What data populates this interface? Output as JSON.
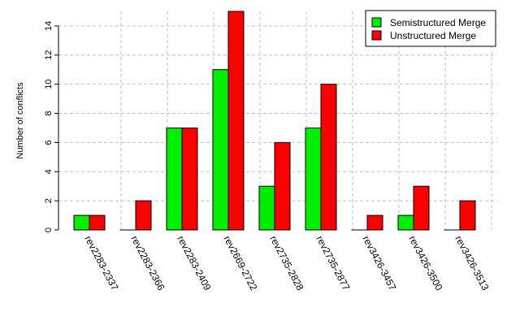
{
  "chart_data": {
    "type": "bar",
    "title": "",
    "xlabel": "",
    "ylabel": "Number of conflicts",
    "ylim": [
      0,
      15
    ],
    "yticks": [
      0,
      2,
      4,
      6,
      8,
      10,
      12,
      14
    ],
    "grid": true,
    "legend_position": "top-right",
    "categories": [
      "rev2283-2337",
      "rev2283-2366",
      "rev2283-2409",
      "rev2669-2722",
      "rev2735-2828",
      "rev2735-2877",
      "rev3426-3457",
      "rev3426-3500",
      "rev3426-3513"
    ],
    "series": [
      {
        "name": "Semistructured Merge",
        "color": "#00ee00",
        "values": [
          1,
          0,
          7,
          11,
          3,
          7,
          0,
          1,
          0
        ]
      },
      {
        "name": "Unstructured Merge",
        "color": "#ff0000",
        "values": [
          1,
          2,
          7,
          15,
          6,
          10,
          1,
          3,
          2
        ]
      }
    ]
  }
}
